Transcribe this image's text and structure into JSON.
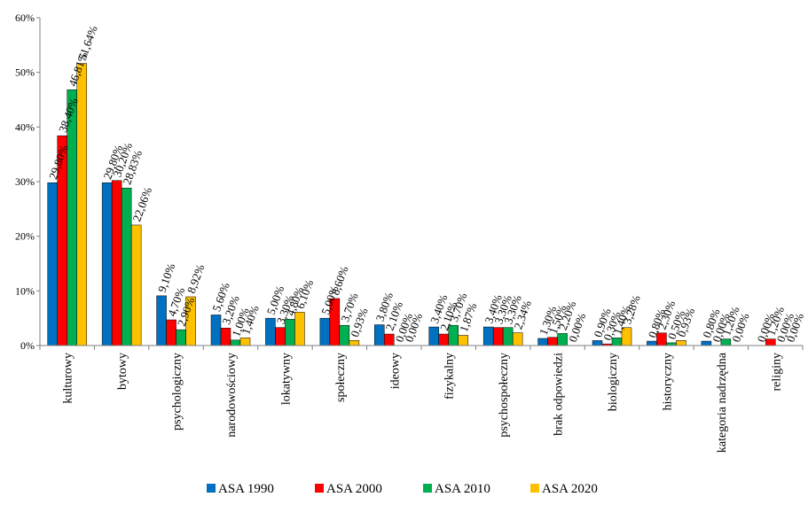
{
  "chart_data": {
    "type": "bar",
    "categories": [
      "kulturowy",
      "bytowy",
      "psychologiczny",
      "narodowościowy",
      "lokatywny",
      "społeczny",
      "ideowy",
      "fizykalny",
      "psychospołeczny",
      "brak odpowiedzi",
      "biologiczny",
      "historyczny",
      "kategoria nadrzędna",
      "religiny"
    ],
    "series": [
      {
        "name": "ASA 1990",
        "color": "#0070C0",
        "values": [
          29.8,
          29.8,
          9.1,
          5.6,
          5.0,
          5.0,
          3.8,
          3.4,
          3.4,
          1.3,
          0.9,
          0.8,
          0.8,
          0.0
        ],
        "labels": [
          "29,80%",
          "29,80%",
          "9,10%",
          "5,60%",
          "5,00%",
          "5,00%",
          "3,80%",
          "3,40%",
          "3,40%",
          "1,30%",
          "0,90%",
          "0,80%",
          "0,80%",
          "0,00%"
        ]
      },
      {
        "name": "ASA 2000",
        "color": "#FF0000",
        "values": [
          38.4,
          30.2,
          4.7,
          3.2,
          3.3,
          8.6,
          2.1,
          2.1,
          3.3,
          1.5,
          0.3,
          2.3,
          0.0,
          1.2
        ],
        "labels": [
          "38,40%",
          "30,20%",
          "4,70%",
          "3,20%",
          "3,30%",
          "8,60%",
          "2,10%",
          "2,10%",
          "3,30%",
          "1,50%",
          "0,30%",
          "2,30%",
          "0,00%",
          "1,20%"
        ]
      },
      {
        "name": "ASA 2010",
        "color": "#00B050",
        "values": [
          46.81,
          28.83,
          2.9,
          1.0,
          4.8,
          3.7,
          0.0,
          3.7,
          3.3,
          2.2,
          1.4,
          0.5,
          1.2,
          0.0
        ],
        "labels": [
          "46,81%",
          "28,83%",
          "2,90%",
          "1,00%",
          "4,80%",
          "3,70%",
          "0,00%",
          "3,70%",
          "3,30%",
          "2,20%",
          "1,40%",
          "0,50%",
          "1,20%",
          "0,00%"
        ]
      },
      {
        "name": "ASA 2020",
        "color": "#FFC000",
        "values": [
          51.64,
          22.06,
          8.92,
          1.4,
          6.1,
          0.93,
          0.0,
          1.87,
          2.34,
          0.0,
          3.28,
          0.93,
          0.0,
          0.0
        ],
        "labels": [
          "51,64%",
          "22,06%",
          "8,92%",
          "1,40%",
          "6,10%",
          "0,93%",
          "0,00%",
          "1,87%",
          "2,34%",
          "0,00%",
          "3,28%",
          "0,93%",
          "0,00%",
          "0,00%"
        ]
      }
    ],
    "ylim": [
      0,
      60
    ],
    "yticks": [
      "0%",
      "10%",
      "20%",
      "30%",
      "40%",
      "50%",
      "60%"
    ],
    "ytick_values": [
      0,
      10,
      20,
      30,
      40,
      50,
      60
    ],
    "grid": false,
    "legend": "bottom",
    "title": "",
    "xlabel": "",
    "ylabel": ""
  }
}
